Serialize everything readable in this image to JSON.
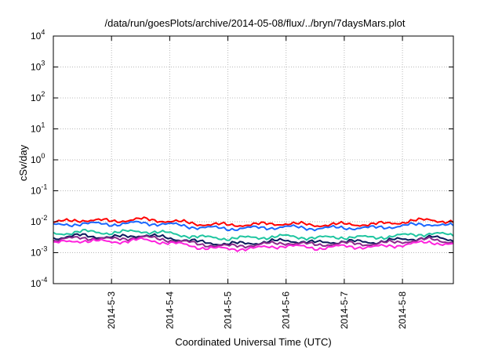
{
  "chart_data": {
    "type": "line",
    "title": "/data/run/goesPlots/archive/2014-05-08/flux/../bryn/7daysMars.plot",
    "xlabel": "Coordinated Universal Time (UTC)",
    "ylabel": "cSv/day",
    "yscale": "log",
    "ylim": [
      0.0001,
      10000
    ],
    "y_ticks": [
      {
        "base": "10",
        "exp": "4",
        "value": 10000
      },
      {
        "base": "10",
        "exp": "3",
        "value": 1000
      },
      {
        "base": "10",
        "exp": "2",
        "value": 100
      },
      {
        "base": "10",
        "exp": "1",
        "value": 10
      },
      {
        "base": "10",
        "exp": "0",
        "value": 1
      },
      {
        "base": "10",
        "exp": "-1",
        "value": 0.1
      },
      {
        "base": "10",
        "exp": "-2",
        "value": 0.01
      },
      {
        "base": "10",
        "exp": "-3",
        "value": 0.001
      },
      {
        "base": "10",
        "exp": "-4",
        "value": 0.0001
      }
    ],
    "xlim": [
      "2014-05-02 00:00",
      "2014-05-08 21:00"
    ],
    "x_ticks": [
      {
        "label": "2014-5-3",
        "day": 3
      },
      {
        "label": "2014-5-4",
        "day": 4
      },
      {
        "label": "2014-5-5",
        "day": 5
      },
      {
        "label": "2014-5-6",
        "day": 6
      },
      {
        "label": "2014-5-7",
        "day": 7
      },
      {
        "label": "2014-5-8",
        "day": 8
      }
    ],
    "grid": true,
    "series": [
      {
        "color": "#ff0000",
        "x": [
          "2014-05-02 00:00",
          "2014-05-02 12:00",
          "2014-05-03 00:00",
          "2014-05-03 12:00",
          "2014-05-04 00:00",
          "2014-05-04 12:00",
          "2014-05-05 00:00",
          "2014-05-05 12:00",
          "2014-05-06 00:00",
          "2014-05-06 12:00",
          "2014-05-07 00:00",
          "2014-05-07 12:00",
          "2014-05-08 00:00",
          "2014-05-08 12:00",
          "2014-05-08 21:00"
        ],
        "y": [
          0.0095,
          0.0115,
          0.0105,
          0.012,
          0.0105,
          0.0085,
          0.0078,
          0.0082,
          0.0088,
          0.0078,
          0.0083,
          0.0082,
          0.0098,
          0.0118,
          0.0095
        ]
      },
      {
        "color": "#1a66ff",
        "x": [
          "2014-05-02 00:00",
          "2014-05-02 12:00",
          "2014-05-03 00:00",
          "2014-05-03 12:00",
          "2014-05-04 00:00",
          "2014-05-04 12:00",
          "2014-05-05 00:00",
          "2014-05-05 12:00",
          "2014-05-06 00:00",
          "2014-05-06 12:00",
          "2014-05-07 00:00",
          "2014-05-07 12:00",
          "2014-05-08 00:00",
          "2014-05-08 12:00",
          "2014-05-08 21:00"
        ],
        "y": [
          0.0075,
          0.0088,
          0.0083,
          0.0092,
          0.0082,
          0.0066,
          0.006,
          0.0063,
          0.0068,
          0.0061,
          0.0064,
          0.0063,
          0.0074,
          0.0085,
          0.0072
        ]
      },
      {
        "color": "#1fc5a0",
        "x": [
          "2014-05-02 00:00",
          "2014-05-02 12:00",
          "2014-05-03 00:00",
          "2014-05-03 12:00",
          "2014-05-04 00:00",
          "2014-05-04 12:00",
          "2014-05-05 00:00",
          "2014-05-05 12:00",
          "2014-05-06 00:00",
          "2014-05-06 12:00",
          "2014-05-07 00:00",
          "2014-05-07 12:00",
          "2014-05-08 00:00",
          "2014-05-08 12:00",
          "2014-05-08 21:00"
        ],
        "y": [
          0.004,
          0.0048,
          0.0044,
          0.005,
          0.0042,
          0.0032,
          0.0029,
          0.0031,
          0.0034,
          0.003,
          0.0032,
          0.0031,
          0.0036,
          0.0042,
          0.0036
        ]
      },
      {
        "color": "#0a1a5c",
        "x": [
          "2014-05-02 00:00",
          "2014-05-02 12:00",
          "2014-05-03 00:00",
          "2014-05-03 12:00",
          "2014-05-04 00:00",
          "2014-05-04 12:00",
          "2014-05-05 00:00",
          "2014-05-05 12:00",
          "2014-05-06 00:00",
          "2014-05-06 12:00",
          "2014-05-07 00:00",
          "2014-05-07 12:00",
          "2014-05-08 00:00",
          "2014-05-08 12:00",
          "2014-05-08 21:00"
        ],
        "y": [
          0.003,
          0.0036,
          0.0031,
          0.0037,
          0.003,
          0.0022,
          0.0019,
          0.0021,
          0.0025,
          0.0021,
          0.0023,
          0.0022,
          0.0027,
          0.0031,
          0.0026
        ]
      },
      {
        "color": "#8c2a8c",
        "x": [
          "2014-05-02 00:00",
          "2014-05-02 12:00",
          "2014-05-03 00:00",
          "2014-05-03 12:00",
          "2014-05-04 00:00",
          "2014-05-04 12:00",
          "2014-05-05 00:00",
          "2014-05-05 12:00",
          "2014-05-06 00:00",
          "2014-05-06 12:00",
          "2014-05-07 00:00",
          "2014-05-07 12:00",
          "2014-05-08 00:00",
          "2014-05-08 12:00",
          "2014-05-08 21:00"
        ],
        "y": [
          0.0025,
          0.0031,
          0.0027,
          0.0032,
          0.0026,
          0.0019,
          0.0016,
          0.0018,
          0.0021,
          0.0018,
          0.002,
          0.0019,
          0.0023,
          0.0027,
          0.0022
        ]
      },
      {
        "color": "#ff22dd",
        "x": [
          "2014-05-02 00:00",
          "2014-05-02 12:00",
          "2014-05-03 00:00",
          "2014-05-03 12:00",
          "2014-05-04 00:00",
          "2014-05-04 12:00",
          "2014-05-05 00:00",
          "2014-05-05 12:00",
          "2014-05-06 00:00",
          "2014-05-06 12:00",
          "2014-05-07 00:00",
          "2014-05-07 12:00",
          "2014-05-08 00:00",
          "2014-05-08 12:00",
          "2014-05-08 21:00"
        ],
        "y": [
          0.002,
          0.0025,
          0.0022,
          0.0026,
          0.0021,
          0.0015,
          0.0013,
          0.0014,
          0.0017,
          0.0014,
          0.0016,
          0.0015,
          0.0018,
          0.0022,
          0.0018
        ]
      }
    ]
  }
}
